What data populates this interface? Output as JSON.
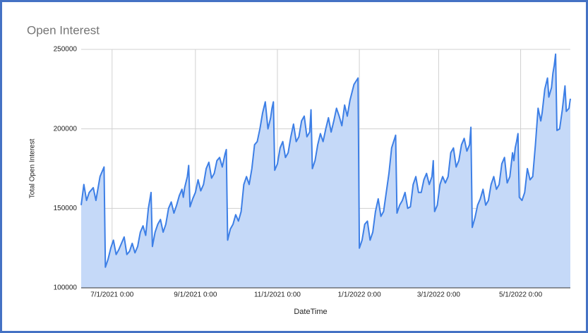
{
  "chart_data": {
    "type": "area",
    "title": "Open Interest",
    "x_label": "DateTime",
    "y_label": "Total Open Interest",
    "color": "#3d7fe6",
    "fill": "#c5d9f8",
    "grid": true,
    "xlim": [
      "2021-06-08",
      "2022-06-07"
    ],
    "xticks": [
      {
        "value": "2021-07-01",
        "label": "7/1/2021 0:00"
      },
      {
        "value": "2021-09-01",
        "label": "9/1/2021 0:00"
      },
      {
        "value": "2021-11-01",
        "label": "11/1/2021 0:00"
      },
      {
        "value": "2022-01-01",
        "label": "1/1/2022 0:00"
      },
      {
        "value": "2022-03-01",
        "label": "3/1/2022 0:00"
      },
      {
        "value": "2022-05-01",
        "label": "5/1/2022 0:00"
      }
    ],
    "ylim": [
      100000,
      250000
    ],
    "yticks": [
      100000,
      150000,
      200000,
      250000
    ],
    "x": [
      "2021-06-08",
      "2021-06-10",
      "2021-06-12",
      "2021-06-14",
      "2021-06-17",
      "2021-06-19",
      "2021-06-22",
      "2021-06-25",
      "2021-06-26",
      "2021-06-28",
      "2021-06-30",
      "2021-07-02",
      "2021-07-04",
      "2021-07-06",
      "2021-07-08",
      "2021-07-10",
      "2021-07-12",
      "2021-07-14",
      "2021-07-16",
      "2021-07-18",
      "2021-07-20",
      "2021-07-22",
      "2021-07-24",
      "2021-07-26",
      "2021-07-28",
      "2021-07-30",
      "2021-07-31",
      "2021-08-02",
      "2021-08-04",
      "2021-08-06",
      "2021-08-08",
      "2021-08-10",
      "2021-08-12",
      "2021-08-14",
      "2021-08-16",
      "2021-08-18",
      "2021-08-20",
      "2021-08-22",
      "2021-08-23",
      "2021-08-24",
      "2021-08-26",
      "2021-08-27",
      "2021-08-28",
      "2021-08-30",
      "2021-09-01",
      "2021-09-03",
      "2021-09-05",
      "2021-09-07",
      "2021-09-09",
      "2021-09-11",
      "2021-09-13",
      "2021-09-15",
      "2021-09-17",
      "2021-09-19",
      "2021-09-21",
      "2021-09-23",
      "2021-09-24",
      "2021-09-25",
      "2021-09-27",
      "2021-09-29",
      "2021-10-01",
      "2021-10-03",
      "2021-10-05",
      "2021-10-07",
      "2021-10-09",
      "2021-10-11",
      "2021-10-13",
      "2021-10-15",
      "2021-10-17",
      "2021-10-19",
      "2021-10-21",
      "2021-10-23",
      "2021-10-25",
      "2021-10-27",
      "2021-10-28",
      "2021-10-29",
      "2021-10-30",
      "2021-11-01",
      "2021-11-03",
      "2021-11-05",
      "2021-11-07",
      "2021-11-09",
      "2021-11-11",
      "2021-11-13",
      "2021-11-15",
      "2021-11-17",
      "2021-11-19",
      "2021-11-21",
      "2021-11-23",
      "2021-11-25",
      "2021-11-26",
      "2021-11-27",
      "2021-11-29",
      "2021-12-01",
      "2021-12-03",
      "2021-12-05",
      "2021-12-07",
      "2021-12-09",
      "2021-12-11",
      "2021-12-13",
      "2021-12-15",
      "2021-12-17",
      "2021-12-19",
      "2021-12-21",
      "2021-12-23",
      "2021-12-25",
      "2021-12-28",
      "2021-12-31",
      "2022-01-01",
      "2022-01-03",
      "2022-01-05",
      "2022-01-07",
      "2022-01-09",
      "2022-01-11",
      "2022-01-13",
      "2022-01-15",
      "2022-01-17",
      "2022-01-19",
      "2022-01-21",
      "2022-01-23",
      "2022-01-25",
      "2022-01-28",
      "2022-01-29",
      "2022-01-31",
      "2022-02-02",
      "2022-02-04",
      "2022-02-06",
      "2022-02-08",
      "2022-02-10",
      "2022-02-12",
      "2022-02-14",
      "2022-02-16",
      "2022-02-18",
      "2022-02-20",
      "2022-02-22",
      "2022-02-24",
      "2022-02-25",
      "2022-02-26",
      "2022-02-28",
      "2022-03-02",
      "2022-03-04",
      "2022-03-06",
      "2022-03-08",
      "2022-03-10",
      "2022-03-12",
      "2022-03-14",
      "2022-03-16",
      "2022-03-18",
      "2022-03-20",
      "2022-03-22",
      "2022-03-24",
      "2022-03-25",
      "2022-03-26",
      "2022-03-28",
      "2022-03-30",
      "2022-04-01",
      "2022-04-03",
      "2022-04-05",
      "2022-04-07",
      "2022-04-09",
      "2022-04-11",
      "2022-04-13",
      "2022-04-15",
      "2022-04-17",
      "2022-04-19",
      "2022-04-21",
      "2022-04-23",
      "2022-04-25",
      "2022-04-26",
      "2022-04-27",
      "2022-04-28",
      "2022-04-29",
      "2022-04-30",
      "2022-05-02",
      "2022-05-04",
      "2022-05-06",
      "2022-05-08",
      "2022-05-10",
      "2022-05-12",
      "2022-05-14",
      "2022-05-16",
      "2022-05-17",
      "2022-05-19",
      "2022-05-21",
      "2022-05-22",
      "2022-05-24",
      "2022-05-25",
      "2022-05-26",
      "2022-05-27",
      "2022-05-28",
      "2022-05-30",
      "2022-06-01",
      "2022-06-03",
      "2022-06-04",
      "2022-06-06",
      "2022-06-07"
    ],
    "values": [
      152000,
      165000,
      155000,
      160000,
      163000,
      155000,
      170000,
      176000,
      113000,
      118000,
      125000,
      130000,
      121000,
      124000,
      128000,
      132000,
      121000,
      123000,
      128000,
      122000,
      126000,
      135000,
      139000,
      133000,
      150000,
      160000,
      126000,
      135000,
      140000,
      143000,
      135000,
      140000,
      150000,
      154000,
      147000,
      152000,
      158000,
      162000,
      157000,
      163000,
      170000,
      177000,
      151000,
      156000,
      160000,
      168000,
      161000,
      165000,
      175000,
      179000,
      169000,
      172000,
      180000,
      182000,
      176000,
      184000,
      187000,
      130000,
      137000,
      140000,
      146000,
      142000,
      148000,
      165000,
      170000,
      165000,
      175000,
      190000,
      192000,
      200000,
      210000,
      217000,
      200000,
      207000,
      213000,
      217000,
      174000,
      178000,
      188000,
      192000,
      182000,
      185000,
      195000,
      203000,
      192000,
      195000,
      205000,
      208000,
      195000,
      198000,
      212000,
      175000,
      180000,
      190000,
      197000,
      192000,
      200000,
      207000,
      198000,
      205000,
      213000,
      208000,
      202000,
      215000,
      208000,
      218000,
      228000,
      232000,
      125000,
      130000,
      140000,
      142000,
      130000,
      135000,
      148000,
      156000,
      145000,
      148000,
      160000,
      172000,
      188000,
      196000,
      147000,
      152000,
      155000,
      160000,
      150000,
      151000,
      165000,
      170000,
      160000,
      160000,
      168000,
      172000,
      165000,
      170000,
      180000,
      148000,
      152000,
      165000,
      170000,
      166000,
      170000,
      185000,
      188000,
      176000,
      180000,
      190000,
      194000,
      186000,
      190000,
      201000,
      138000,
      144000,
      152000,
      156000,
      162000,
      152000,
      155000,
      165000,
      170000,
      162000,
      165000,
      178000,
      182000,
      166000,
      170000,
      185000,
      180000,
      188000,
      192000,
      197000,
      157000,
      155000,
      160000,
      175000,
      168000,
      170000,
      190000,
      213000,
      205000,
      210000,
      225000,
      232000,
      220000,
      226000,
      235000,
      240000,
      247000,
      199000,
      200000,
      212000,
      227000,
      211000,
      213000,
      219000
    ]
  }
}
